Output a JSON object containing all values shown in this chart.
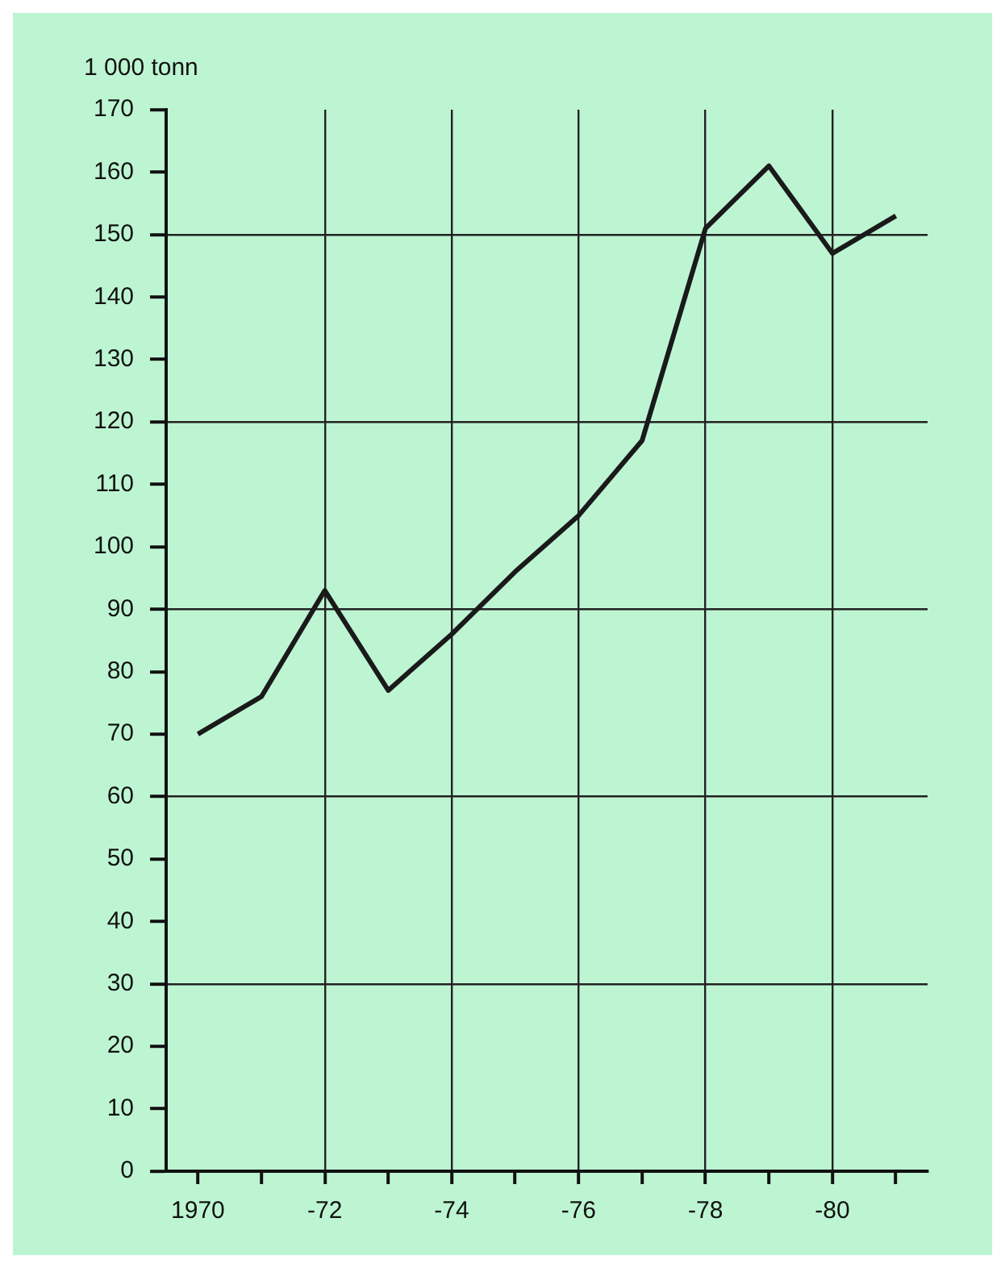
{
  "chart_data": {
    "type": "line",
    "ylabel": "1 000 tonn",
    "categories": [
      "1970",
      null,
      "-72",
      null,
      "-74",
      null,
      "-76",
      null,
      "-78",
      null,
      "-80",
      null
    ],
    "series": [
      {
        "color": "#1a1a1a",
        "values": [
          70,
          76,
          93,
          77,
          86,
          96,
          105,
          117,
          151,
          161,
          147,
          153
        ]
      }
    ],
    "ylim": [
      0,
      170
    ],
    "yticks": [
      0,
      10,
      20,
      30,
      40,
      50,
      60,
      70,
      80,
      90,
      100,
      110,
      120,
      130,
      140,
      150,
      160,
      170
    ],
    "grid": true,
    "legend": false,
    "marker": "none",
    "line_style": "solid"
  }
}
